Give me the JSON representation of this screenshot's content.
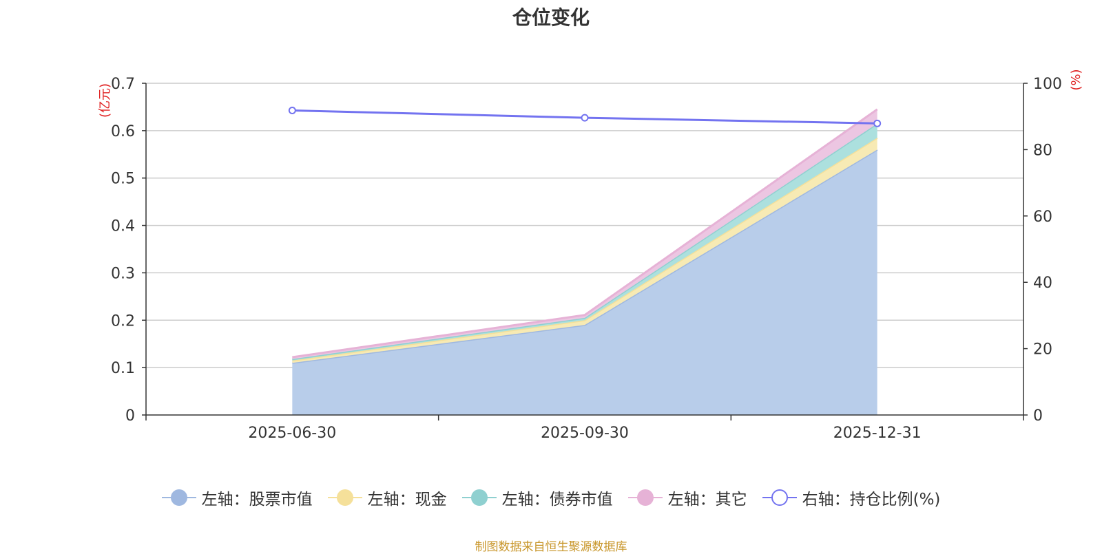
{
  "chart_data": {
    "type": "area",
    "title": "仓位变化",
    "categories": [
      "2025-06-30",
      "2025-09-30",
      "2025-12-31"
    ],
    "left_axis": {
      "unit_label": "(亿元)",
      "ylim": [
        0,
        0.7
      ],
      "ticks": [
        "0",
        "0.1",
        "0.2",
        "0.3",
        "0.4",
        "0.5",
        "0.6",
        "0.7"
      ]
    },
    "right_axis": {
      "unit_label": "(%)",
      "ylim": [
        0,
        100
      ],
      "ticks": [
        "0",
        "20",
        "40",
        "60",
        "80",
        "100"
      ]
    },
    "stacked": true,
    "series": [
      {
        "name": "左轴：股票市值",
        "axis": "left",
        "type": "area",
        "values": [
          0.11,
          0.19,
          0.56
        ],
        "color": "#9fb8e0",
        "fill": "#b8cdea"
      },
      {
        "name": "左轴：现金",
        "axis": "left",
        "type": "area",
        "values": [
          0.005,
          0.01,
          0.025
        ],
        "color": "#f5e09a",
        "fill": "#f7eab4"
      },
      {
        "name": "左轴：债券市值",
        "axis": "left",
        "type": "area",
        "values": [
          0.003,
          0.005,
          0.03
        ],
        "color": "#8fd0d0",
        "fill": "#ace0de"
      },
      {
        "name": "左轴：其它",
        "axis": "left",
        "type": "area",
        "values": [
          0.004,
          0.006,
          0.03
        ],
        "color": "#e6b2d6",
        "fill": "#ecc6e2"
      },
      {
        "name": "右轴：持仓比例(%)",
        "axis": "right",
        "type": "line",
        "values": [
          91.8,
          89.6,
          87.9
        ],
        "color": "#7373f0"
      }
    ],
    "grid": true,
    "legend_position": "bottom"
  },
  "source_note": "制图数据来自恒生聚源数据库"
}
